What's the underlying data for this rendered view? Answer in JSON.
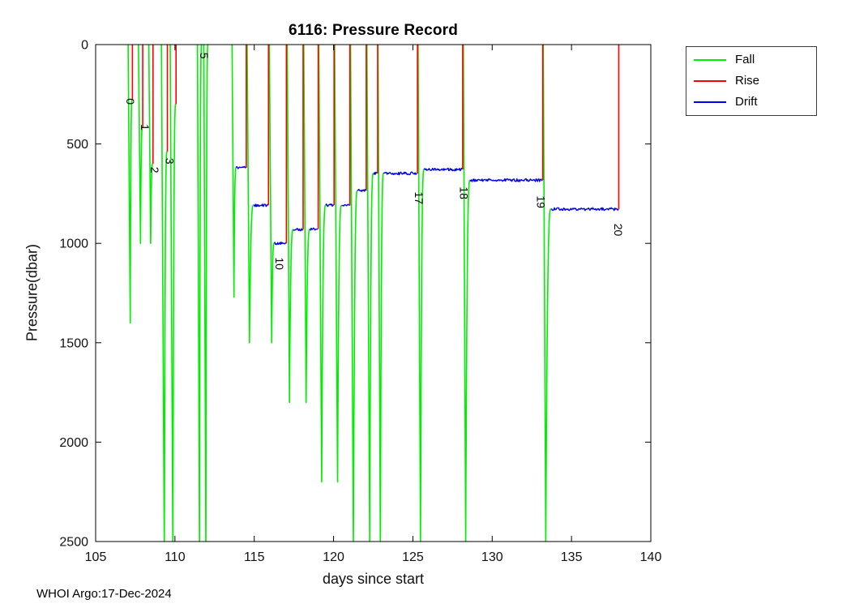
{
  "header": {
    "title": "6116: Pressure Record"
  },
  "footer": {
    "credit": "WHOI Argo:17-Dec-2024"
  },
  "chart_data": {
    "type": "line",
    "title": "6116: Pressure Record",
    "xlabel": "days since start",
    "ylabel": "Pressure(dbar)",
    "xlim": [
      105,
      140
    ],
    "ylim": [
      0,
      2500
    ],
    "y_inverted": true,
    "grid": false,
    "xticks": [
      105,
      110,
      115,
      120,
      125,
      130,
      135,
      140
    ],
    "yticks": [
      0,
      500,
      1000,
      1500,
      2000,
      2500
    ],
    "legend": {
      "position": "outside-top-right",
      "entries": [
        {
          "label": "Fall",
          "color": "#00ee00"
        },
        {
          "label": "Rise",
          "color": "#ff0000"
        },
        {
          "label": "Drift",
          "color": "#0000ee"
        }
      ]
    },
    "series": {
      "fall": {
        "name": "Fall",
        "color": "#00ee00",
        "events": [
          {
            "start_day": 107.05,
            "bottom_day": 107.18,
            "max_pressure": 1400,
            "end_day": 107.3,
            "end_pressure": 280
          },
          {
            "start_day": 107.7,
            "bottom_day": 107.83,
            "max_pressure": 1000,
            "end_day": 107.95,
            "end_pressure": 420
          },
          {
            "start_day": 108.35,
            "bottom_day": 108.47,
            "max_pressure": 1000,
            "end_day": 108.6,
            "end_pressure": 600
          },
          {
            "start_day": 109.15,
            "bottom_day": 109.33,
            "max_pressure": 2560,
            "end_day": 109.5,
            "end_pressure": 540
          },
          {
            "start_day": 109.7,
            "bottom_day": 109.87,
            "max_pressure": 2560,
            "end_day": 110.05,
            "end_pressure": 300
          },
          {
            "start_day": 111.42,
            "bottom_day": 111.55,
            "max_pressure": 2560,
            "end_day": 111.68,
            "end_pressure": 0
          },
          {
            "start_day": 111.82,
            "bottom_day": 111.95,
            "max_pressure": 2560,
            "end_day": 112.08,
            "end_pressure": 0
          },
          {
            "start_day": 113.6,
            "bottom_day": 113.72,
            "max_pressure": 1270,
            "end_day": 113.85,
            "end_pressure": 620
          },
          {
            "start_day": 114.55,
            "bottom_day": 114.7,
            "max_pressure": 1500,
            "end_day": 114.95,
            "end_pressure": 808
          },
          {
            "start_day": 115.95,
            "bottom_day": 116.1,
            "max_pressure": 1500,
            "end_day": 116.25,
            "end_pressure": 1000
          },
          {
            "start_day": 117.08,
            "bottom_day": 117.22,
            "max_pressure": 1800,
            "end_day": 117.45,
            "end_pressure": 930
          },
          {
            "start_day": 118.12,
            "bottom_day": 118.27,
            "max_pressure": 1800,
            "end_day": 118.5,
            "end_pressure": 928
          },
          {
            "start_day": 119.07,
            "bottom_day": 119.25,
            "max_pressure": 2200,
            "end_day": 119.5,
            "end_pressure": 808
          },
          {
            "start_day": 120.07,
            "bottom_day": 120.25,
            "max_pressure": 2200,
            "end_day": 120.5,
            "end_pressure": 810
          },
          {
            "start_day": 121.07,
            "bottom_day": 121.25,
            "max_pressure": 2520,
            "end_day": 121.5,
            "end_pressure": 735
          },
          {
            "start_day": 122.1,
            "bottom_day": 122.28,
            "max_pressure": 2520,
            "end_day": 122.5,
            "end_pressure": 648
          },
          {
            "start_day": 122.8,
            "bottom_day": 122.95,
            "max_pressure": 2520,
            "end_day": 123.15,
            "end_pressure": 648
          },
          {
            "start_day": 125.33,
            "bottom_day": 125.48,
            "max_pressure": 2520,
            "end_day": 125.7,
            "end_pressure": 628
          },
          {
            "start_day": 128.18,
            "bottom_day": 128.33,
            "max_pressure": 2520,
            "end_day": 128.6,
            "end_pressure": 682
          },
          {
            "start_day": 133.22,
            "bottom_day": 133.38,
            "max_pressure": 2520,
            "end_day": 133.7,
            "end_pressure": 828
          }
        ]
      },
      "rise": {
        "name": "Rise",
        "color": "#ff0000",
        "events": [
          {
            "day": 107.32,
            "from_pressure": 280
          },
          {
            "day": 107.97,
            "from_pressure": 420
          },
          {
            "day": 108.62,
            "from_pressure": 600
          },
          {
            "day": 109.52,
            "from_pressure": 540
          },
          {
            "day": 110.07,
            "from_pressure": 300
          },
          {
            "day": 114.5,
            "from_pressure": 620
          },
          {
            "day": 115.9,
            "from_pressure": 808
          },
          {
            "day": 117.03,
            "from_pressure": 1000
          },
          {
            "day": 118.08,
            "from_pressure": 930
          },
          {
            "day": 119.03,
            "from_pressure": 928
          },
          {
            "day": 120.03,
            "from_pressure": 808
          },
          {
            "day": 121.03,
            "from_pressure": 810
          },
          {
            "day": 122.06,
            "from_pressure": 735
          },
          {
            "day": 122.78,
            "from_pressure": 648
          },
          {
            "day": 125.29,
            "from_pressure": 648
          },
          {
            "day": 128.14,
            "from_pressure": 628
          },
          {
            "day": 133.19,
            "from_pressure": 682
          },
          {
            "day": 137.98,
            "from_pressure": 828
          }
        ]
      },
      "drift": {
        "name": "Drift",
        "color": "#0000ee",
        "segments": [
          {
            "start_day": 113.85,
            "end_day": 114.48,
            "pressure": 620
          },
          {
            "start_day": 114.95,
            "end_day": 115.88,
            "pressure": 808
          },
          {
            "start_day": 116.25,
            "end_day": 117.01,
            "pressure": 1000
          },
          {
            "start_day": 117.45,
            "end_day": 118.06,
            "pressure": 930
          },
          {
            "start_day": 118.5,
            "end_day": 119.01,
            "pressure": 928
          },
          {
            "start_day": 119.5,
            "end_day": 120.01,
            "pressure": 808
          },
          {
            "start_day": 120.5,
            "end_day": 121.01,
            "pressure": 810
          },
          {
            "start_day": 121.5,
            "end_day": 122.04,
            "pressure": 735
          },
          {
            "start_day": 122.5,
            "end_day": 122.76,
            "pressure": 648
          },
          {
            "start_day": 123.15,
            "end_day": 125.27,
            "pressure": 648
          },
          {
            "start_day": 125.7,
            "end_day": 128.12,
            "pressure": 628
          },
          {
            "start_day": 128.6,
            "end_day": 133.17,
            "pressure": 682
          },
          {
            "start_day": 133.7,
            "end_day": 137.96,
            "pressure": 828
          }
        ]
      }
    },
    "annotations": [
      {
        "text": "0",
        "day": 106.95,
        "pressure": 270,
        "rotation": 90
      },
      {
        "text": "1",
        "day": 107.85,
        "pressure": 400,
        "rotation": 90
      },
      {
        "text": "2",
        "day": 108.48,
        "pressure": 615,
        "rotation": 90
      },
      {
        "text": "3",
        "day": 109.42,
        "pressure": 570,
        "rotation": 90
      },
      {
        "text": "5",
        "day": 111.58,
        "pressure": 40,
        "rotation": 90
      },
      {
        "text": "10",
        "day": 116.35,
        "pressure": 1070,
        "rotation": 90
      },
      {
        "text": "17",
        "day": 125.12,
        "pressure": 740,
        "rotation": 90
      },
      {
        "text": "18",
        "day": 127.97,
        "pressure": 715,
        "rotation": 90
      },
      {
        "text": "19",
        "day": 132.83,
        "pressure": 760,
        "rotation": 90
      },
      {
        "text": "20",
        "day": 137.7,
        "pressure": 900,
        "rotation": 90
      }
    ]
  }
}
